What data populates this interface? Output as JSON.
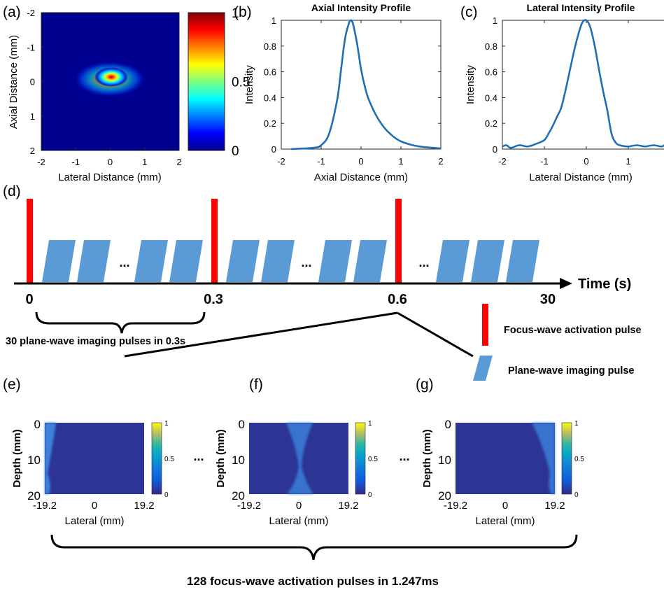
{
  "panels": {
    "a": "(a)",
    "b": "(b)",
    "c": "(c)",
    "d": "(d)",
    "e": "(e)",
    "f": "(f)",
    "g": "(g)"
  },
  "colors": {
    "heat_blue": "#00008f",
    "profile_line": "#1f6fb5",
    "focus_pulse": "#ff0000",
    "imaging_pulse": "#5b9bd5",
    "field_background": "#2c3596",
    "field_beam": "#3a7ed8"
  },
  "chart_data": [
    {
      "panel": "a",
      "type": "heatmap",
      "xlabel": "Lateral Distance (mm)",
      "ylabel": "Axial Distance (mm)",
      "xlim": [
        -2,
        2
      ],
      "ylim": [
        2,
        -2
      ],
      "x_ticks": [
        "-2",
        "-1",
        "0",
        "1",
        "2"
      ],
      "y_ticks": [
        "-2",
        "-1",
        "0",
        "1",
        "2"
      ],
      "colorbar": {
        "range": [
          0,
          1
        ],
        "ticks": [
          "0",
          "0.5",
          "1"
        ]
      },
      "peak": {
        "x": 0.0,
        "y": -0.2,
        "value": 1.0
      }
    },
    {
      "panel": "b",
      "type": "line",
      "title": "Axial Intensity Profile",
      "xlabel": "Axial Distance (mm)",
      "ylabel": "Intensity",
      "xlim": [
        -2,
        2
      ],
      "ylim": [
        0,
        1
      ],
      "x_ticks": [
        "-2",
        "-1",
        "0",
        "1",
        "2"
      ],
      "y_ticks": [
        "0",
        "0.2",
        "0.4",
        "0.6",
        "0.8",
        "1"
      ],
      "x": [
        -1.75,
        -1.2,
        -1.0,
        -0.8,
        -0.6,
        -0.5,
        -0.4,
        -0.3,
        -0.25,
        -0.2,
        -0.1,
        0.0,
        0.1,
        0.2,
        0.4,
        0.6,
        0.8,
        1.0,
        1.3,
        1.6,
        2.0
      ],
      "y": [
        0.0,
        0.01,
        0.03,
        0.12,
        0.38,
        0.62,
        0.86,
        0.98,
        1.0,
        0.97,
        0.82,
        0.62,
        0.48,
        0.38,
        0.25,
        0.16,
        0.1,
        0.06,
        0.03,
        0.015,
        0.005
      ]
    },
    {
      "panel": "c",
      "type": "line",
      "title": "Lateral Intensity Profile",
      "xlabel": "Lateral Distance (mm)",
      "ylabel": "Intensity",
      "xlim": [
        -2,
        2
      ],
      "ylim": [
        0,
        1
      ],
      "x_ticks": [
        "-2",
        "-1",
        "0",
        "1",
        "2"
      ],
      "y_ticks": [
        "0",
        "0.2",
        "0.4",
        "0.6",
        "0.8",
        "1"
      ],
      "x": [
        -2.0,
        -1.9,
        -1.8,
        -1.6,
        -1.4,
        -1.2,
        -1.0,
        -0.9,
        -0.8,
        -0.7,
        -0.6,
        -0.5,
        -0.4,
        -0.3,
        -0.2,
        -0.1,
        0.0,
        0.1,
        0.2,
        0.3,
        0.4,
        0.5,
        0.6,
        0.7,
        0.8,
        1.0,
        1.2,
        1.4,
        1.6,
        1.8,
        1.9,
        2.0
      ],
      "y": [
        0.02,
        0.03,
        0.01,
        0.03,
        0.02,
        0.04,
        0.07,
        0.12,
        0.18,
        0.25,
        0.32,
        0.45,
        0.6,
        0.75,
        0.88,
        0.98,
        1.0,
        0.94,
        0.8,
        0.62,
        0.45,
        0.3,
        0.12,
        0.05,
        0.03,
        0.02,
        0.03,
        0.02,
        0.03,
        0.02,
        0.04,
        0.03
      ]
    },
    {
      "panel": "d",
      "type": "timeline",
      "xlabel": "Time (s)",
      "ticks": [
        "0",
        "0.3",
        "0.6",
        "30"
      ],
      "ellipsis": "...",
      "brace_label": "30 plane-wave imaging pulses in 0.3s",
      "legend": [
        {
          "label": "Focus-wave activation pulse",
          "kind": "focus"
        },
        {
          "label": "Plane-wave imaging pulse",
          "kind": "imaging"
        }
      ]
    },
    {
      "panel": "e",
      "type": "heatmap",
      "xlabel": "Lateral (mm)",
      "ylabel": "Depth (mm)",
      "x_ticks": [
        "-19.2",
        "0",
        "19.2"
      ],
      "y_ticks": [
        "0",
        "10",
        "20"
      ],
      "colorbar": {
        "range": [
          0,
          1
        ],
        "ticks": [
          "0",
          "0.5",
          "1"
        ]
      },
      "focus_lateral": -19.2
    },
    {
      "panel": "f",
      "type": "heatmap",
      "xlabel": "Lateral (mm)",
      "ylabel": "Depth (mm)",
      "x_ticks": [
        "-19.2",
        "0",
        "19.2"
      ],
      "y_ticks": [
        "0",
        "10",
        "20"
      ],
      "colorbar": {
        "range": [
          0,
          1
        ],
        "ticks": [
          "0",
          "0.5",
          "1"
        ]
      },
      "focus_lateral": 0
    },
    {
      "panel": "g",
      "type": "heatmap",
      "xlabel": "Lateral (mm)",
      "ylabel": "Depth (mm)",
      "x_ticks": [
        "-19.2",
        "0",
        "19.2"
      ],
      "y_ticks": [
        "0",
        "10",
        "20"
      ],
      "colorbar": {
        "range": [
          0,
          1
        ],
        "ticks": [
          "0",
          "0.5",
          "1"
        ]
      },
      "focus_lateral": 19.2
    }
  ],
  "sequence": {
    "ellipsis": "...",
    "brace_label": "128 focus-wave activation pulses in 1.247ms"
  }
}
